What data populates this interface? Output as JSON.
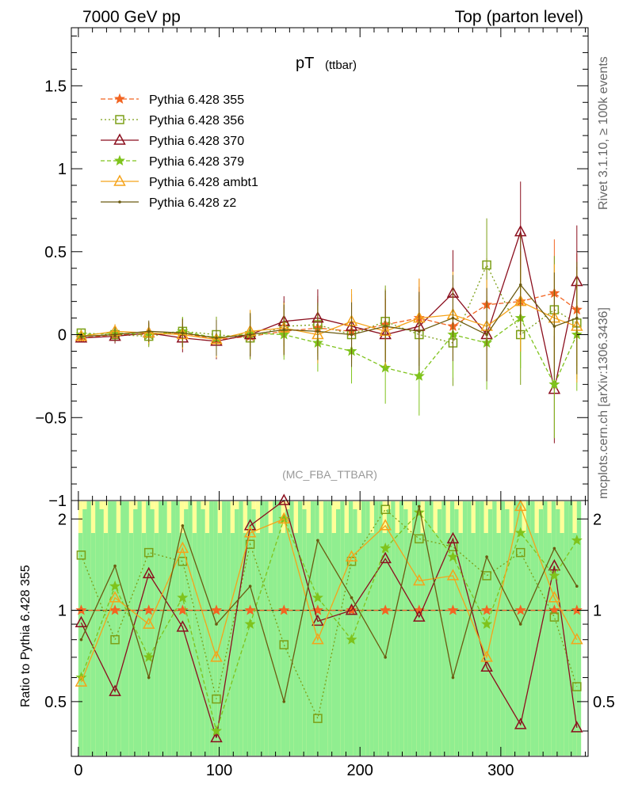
{
  "header": {
    "left": "7000 GeV pp",
    "right": "Top (parton level)"
  },
  "side_labels": {
    "rivet": "Rivet 3.1.10, ≥ 100k events",
    "mcplots": "mcplots.cern.ch [arXiv:1306.3436]"
  },
  "chart_data": {
    "type": "line",
    "title_main": "pT",
    "title_sub": "(ttbar)",
    "watermark": "(MC_FBA_TTBAR)",
    "xlabel": "",
    "ylabel": "",
    "ratio_ylabel": "Ratio to Pythia 6.428 355",
    "xlim": [
      -5,
      362
    ],
    "ylim": [
      -1,
      1.85
    ],
    "ratio_ylim": [
      0.33,
      2.3
    ],
    "x_ticks": [
      "0",
      "100",
      "200",
      "300"
    ],
    "y_ticks": [
      "1.5",
      "1",
      "0.5",
      "0",
      "−0.5",
      "−1"
    ],
    "ratio_ticks": [
      "2",
      "1",
      "0.5"
    ],
    "x_tick_values": [
      0,
      100,
      200,
      300
    ],
    "y_tick_values": [
      1.5,
      1,
      0.5,
      0,
      -0.5,
      -1
    ],
    "ratio_tick_values": [
      2,
      1,
      0.5
    ],
    "legend_position": "top-left",
    "x": [
      2,
      26,
      50,
      74,
      98,
      122,
      146,
      170,
      194,
      218,
      242,
      266,
      290,
      314,
      338,
      354
    ],
    "series": [
      {
        "name": "Pythia 6.428 355",
        "color": "#f26522",
        "marker": "star",
        "dash": "6,3",
        "values": [
          -0.02,
          0.0,
          0.0,
          0.01,
          -0.03,
          -0.01,
          0.02,
          0.04,
          0.02,
          0.06,
          0.1,
          0.05,
          0.18,
          0.2,
          0.25,
          0.15
        ],
        "ratio": [
          1.0,
          1.0,
          1.0,
          1.0,
          1.0,
          1.0,
          1.0,
          1.0,
          1.0,
          1.0,
          1.0,
          1.0,
          1.0,
          1.0,
          1.0,
          1.0
        ]
      },
      {
        "name": "Pythia 6.428 356",
        "color": "#7c9f16",
        "marker": "square",
        "dash": "2,3",
        "values": [
          0.01,
          0.0,
          -0.01,
          0.02,
          0.0,
          -0.02,
          0.05,
          0.06,
          0.0,
          0.08,
          0.0,
          -0.05,
          0.42,
          0.0,
          0.15,
          0.07
        ],
        "ratio": [
          1.52,
          0.8,
          1.55,
          1.45,
          0.51,
          1.65,
          0.77,
          0.44,
          1.45,
          2.15,
          1.72,
          1.62,
          1.3,
          1.55,
          0.95,
          0.56
        ]
      },
      {
        "name": "Pythia 6.428 370",
        "color": "#8b0f1e",
        "marker": "triangle",
        "dash": "",
        "values": [
          -0.02,
          -0.01,
          0.01,
          -0.02,
          -0.04,
          0.0,
          0.08,
          0.1,
          0.05,
          0.0,
          0.05,
          0.25,
          0.0,
          0.62,
          -0.33,
          0.32
        ],
        "ratio": [
          0.91,
          0.54,
          1.32,
          0.88,
          0.38,
          1.9,
          2.3,
          0.92,
          1.0,
          1.48,
          0.95,
          1.72,
          0.65,
          0.42,
          1.4,
          0.41
        ]
      },
      {
        "name": "Pythia 6.428 379",
        "color": "#7fc31c",
        "marker": "star",
        "dash": "5,3",
        "values": [
          0.0,
          0.01,
          0.0,
          0.02,
          -0.02,
          0.01,
          0.0,
          -0.05,
          -0.1,
          -0.2,
          -0.25,
          0.0,
          -0.05,
          0.1,
          -0.3,
          0.0
        ],
        "ratio": [
          0.6,
          1.2,
          0.7,
          1.1,
          0.4,
          0.9,
          2.0,
          1.1,
          0.8,
          1.6,
          2.1,
          1.5,
          0.9,
          1.8,
          1.3,
          1.7
        ]
      },
      {
        "name": "Pythia 6.428 ambt1",
        "color": "#f5a31a",
        "marker": "triangle",
        "dash": "",
        "values": [
          -0.01,
          0.02,
          0.01,
          0.0,
          -0.03,
          0.02,
          0.04,
          0.0,
          0.08,
          0.02,
          0.1,
          0.12,
          0.05,
          0.2,
          0.1,
          0.05
        ],
        "ratio": [
          0.58,
          1.1,
          0.9,
          1.6,
          0.7,
          1.8,
          2.0,
          0.8,
          1.5,
          1.9,
          1.25,
          1.3,
          0.7,
          2.2,
          1.1,
          0.8
        ]
      },
      {
        "name": "Pythia 6.428 z2",
        "color": "#6b5a10",
        "marker": "dot",
        "dash": "",
        "values": [
          -0.01,
          0.0,
          0.02,
          0.01,
          -0.02,
          0.0,
          0.03,
          0.02,
          0.0,
          0.05,
          0.02,
          0.1,
          0.0,
          0.3,
          0.05,
          0.1
        ],
        "ratio": [
          0.8,
          1.4,
          0.6,
          1.9,
          0.9,
          1.2,
          0.5,
          1.7,
          1.1,
          0.7,
          2.2,
          0.6,
          1.5,
          0.9,
          1.6,
          1.2
        ]
      }
    ]
  }
}
